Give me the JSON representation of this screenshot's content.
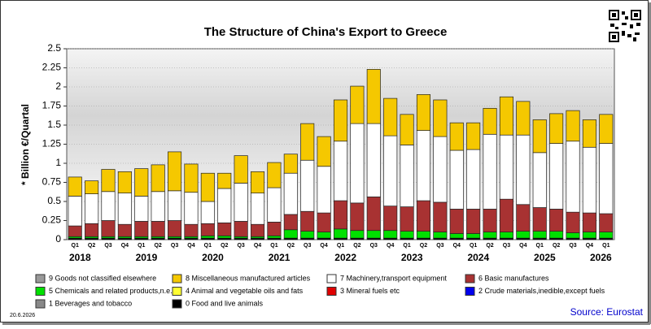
{
  "chart_data": {
    "type": "stacked_bar",
    "title": "The Structure of China's Export to Greece",
    "y_label": "* Billion €/Quartal",
    "source": "Source: Eurostat",
    "date": "20.6.2026",
    "categories": [
      "Q1",
      "Q2",
      "Q3",
      "Q4",
      "Q1",
      "Q2",
      "Q3",
      "Q4",
      "Q1",
      "Q2",
      "Q3",
      "Q4",
      "Q1",
      "Q2",
      "Q3",
      "Q4",
      "Q1",
      "Q2",
      "Q3",
      "Q4",
      "Q1",
      "Q2",
      "Q3",
      "Q4",
      "Q1",
      "Q2",
      "Q3",
      "Q4",
      "Q1",
      "Q2",
      "Q3",
      "Q4",
      "Q1"
    ],
    "years": [
      "2018",
      "2019",
      "2020",
      "2021",
      "2022",
      "2023",
      "2024",
      "2025",
      "2026"
    ],
    "ylim": [
      0,
      2.5
    ],
    "yticks": [
      0,
      0.25,
      0.5,
      0.75,
      1,
      1.25,
      1.5,
      1.75,
      2,
      2.25,
      2.5
    ],
    "series": [
      {
        "name": "9 Goods not classified elsewhere",
        "color": "#999999",
        "values": [
          0,
          0,
          0,
          0,
          0,
          0,
          0,
          0,
          0,
          0,
          0,
          0,
          0,
          0,
          0,
          0,
          0,
          0,
          0,
          0,
          0,
          0,
          0,
          0,
          0,
          0,
          0,
          0,
          0,
          0,
          0,
          0,
          0
        ]
      },
      {
        "name": "8 Miscellaneous manufactured articles",
        "color": "#f5c800",
        "values": [
          0.25,
          0.17,
          0.29,
          0.28,
          0.36,
          0.35,
          0.51,
          0.37,
          0.37,
          0.2,
          0.36,
          0.28,
          0.33,
          0.25,
          0.48,
          0.39,
          0.54,
          0.49,
          0.71,
          0.49,
          0.4,
          0.47,
          0.48,
          0.36,
          0.35,
          0.34,
          0.5,
          0.44,
          0.43,
          0.39,
          0.4,
          0.36,
          0.38
        ]
      },
      {
        "name": "7 Machinery,transport equipment",
        "color": "#ffffff",
        "values": [
          0.39,
          0.39,
          0.38,
          0.41,
          0.33,
          0.39,
          0.39,
          0.42,
          0.29,
          0.45,
          0.5,
          0.41,
          0.45,
          0.54,
          0.67,
          0.61,
          0.78,
          1.04,
          0.96,
          0.92,
          0.81,
          0.92,
          0.86,
          0.77,
          0.78,
          0.98,
          0.84,
          0.91,
          0.72,
          0.86,
          0.93,
          0.86,
          0.92
        ]
      },
      {
        "name": "6 Basic manufactures",
        "color": "#a83232",
        "values": [
          0.14,
          0.17,
          0.21,
          0.16,
          0.2,
          0.2,
          0.21,
          0.16,
          0.16,
          0.17,
          0.2,
          0.16,
          0.18,
          0.2,
          0.26,
          0.25,
          0.37,
          0.36,
          0.44,
          0.32,
          0.32,
          0.4,
          0.39,
          0.32,
          0.32,
          0.3,
          0.43,
          0.35,
          0.31,
          0.29,
          0.27,
          0.25,
          0.24
        ]
      },
      {
        "name": "5 Chemicals and related products,n.e.s.",
        "color": "#00e000",
        "values": [
          0.02,
          0.02,
          0.02,
          0.02,
          0.02,
          0.02,
          0.02,
          0.02,
          0.03,
          0.03,
          0.02,
          0.02,
          0.03,
          0.11,
          0.09,
          0.08,
          0.12,
          0.1,
          0.1,
          0.1,
          0.09,
          0.09,
          0.08,
          0.06,
          0.06,
          0.08,
          0.08,
          0.09,
          0.09,
          0.09,
          0.07,
          0.08,
          0.08
        ]
      },
      {
        "name": "4 Animal and vegetable oils and fats",
        "color": "#ffff33",
        "values": [
          0,
          0,
          0,
          0,
          0,
          0,
          0,
          0,
          0,
          0,
          0,
          0,
          0,
          0,
          0,
          0,
          0,
          0,
          0,
          0,
          0,
          0,
          0,
          0,
          0,
          0,
          0,
          0,
          0,
          0,
          0,
          0,
          0
        ]
      },
      {
        "name": "3 Mineral fuels etc",
        "color": "#e00000",
        "values": [
          0,
          0,
          0,
          0,
          0,
          0,
          0,
          0,
          0,
          0,
          0,
          0,
          0,
          0,
          0,
          0,
          0,
          0,
          0,
          0,
          0,
          0,
          0,
          0,
          0,
          0,
          0,
          0,
          0,
          0,
          0,
          0,
          0
        ]
      },
      {
        "name": "2 Crude materials,inedible,except fuels",
        "color": "#0000ee",
        "values": [
          0,
          0,
          0,
          0,
          0,
          0,
          0,
          0,
          0,
          0,
          0,
          0,
          0,
          0,
          0,
          0,
          0,
          0,
          0,
          0,
          0,
          0,
          0,
          0,
          0,
          0,
          0,
          0,
          0,
          0,
          0,
          0,
          0
        ]
      },
      {
        "name": "1 Beverages and tobacco",
        "color": "#888888",
        "values": [
          0,
          0,
          0,
          0,
          0,
          0,
          0,
          0,
          0,
          0,
          0,
          0,
          0,
          0,
          0,
          0,
          0,
          0,
          0,
          0,
          0,
          0,
          0,
          0,
          0,
          0,
          0,
          0,
          0,
          0,
          0,
          0,
          0
        ]
      },
      {
        "name": "0 Food and live animals",
        "color": "#000000",
        "values": [
          0.02,
          0.02,
          0.02,
          0.02,
          0.02,
          0.02,
          0.02,
          0.02,
          0.02,
          0.02,
          0.02,
          0.02,
          0.02,
          0.02,
          0.02,
          0.02,
          0.02,
          0.02,
          0.02,
          0.02,
          0.02,
          0.02,
          0.02,
          0.02,
          0.02,
          0.02,
          0.02,
          0.02,
          0.02,
          0.02,
          0.02,
          0.02,
          0.02
        ]
      }
    ]
  }
}
